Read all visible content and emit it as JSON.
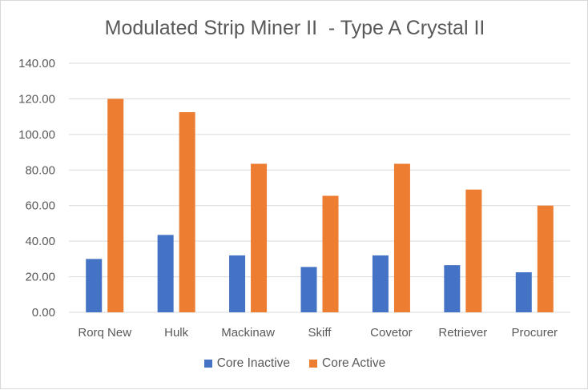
{
  "chart_data": {
    "type": "bar",
    "title": "Modulated Strip Miner II  - Type A Crystal II",
    "xlabel": "",
    "ylabel": "",
    "categories": [
      "Rorq New",
      "Hulk",
      "Mackinaw",
      "Skiff",
      "Covetor",
      "Retriever",
      "Procurer"
    ],
    "series": [
      {
        "name": "Core Inactive",
        "values": [
          30,
          43.5,
          32,
          25.5,
          32,
          26.5,
          22.5
        ],
        "color": "#4472c4"
      },
      {
        "name": "Core Active",
        "values": [
          120,
          112.5,
          83.5,
          65.5,
          83.5,
          69,
          60
        ],
        "color": "#ed7d31"
      }
    ],
    "ylim": [
      0,
      140
    ],
    "yticks": [
      "0.00",
      "20.00",
      "40.00",
      "60.00",
      "80.00",
      "100.00",
      "120.00",
      "140.00"
    ],
    "grid": true,
    "legend_position": "bottom"
  }
}
